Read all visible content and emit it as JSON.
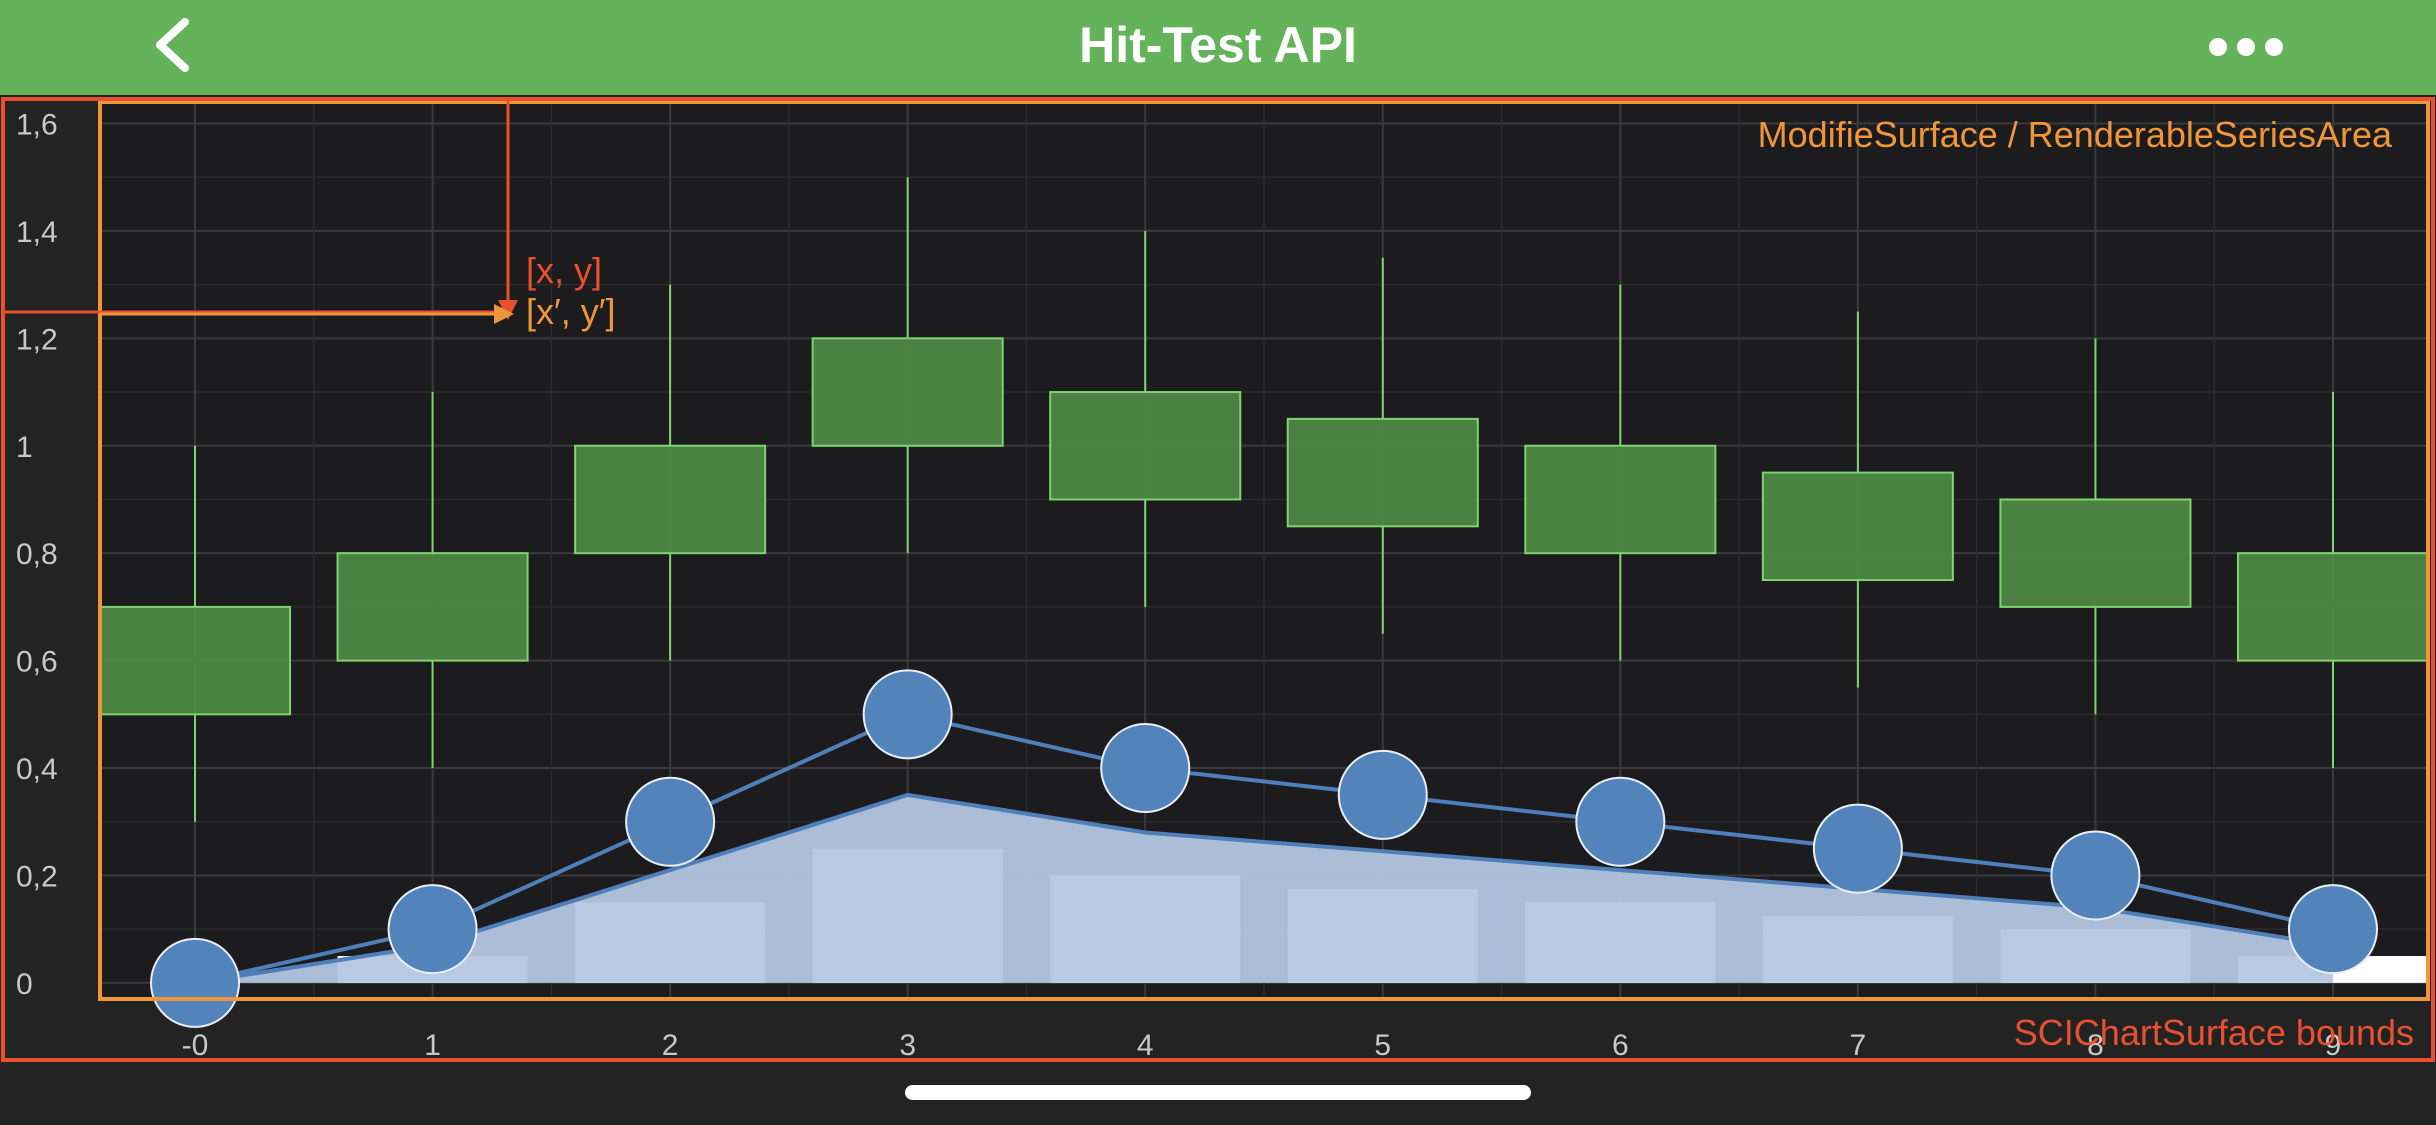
{
  "header": {
    "title": "Hit-Test API",
    "back_icon": "chevron-left-icon",
    "more_icon": "ellipsis-icon"
  },
  "annotations": {
    "modifier_surface_label": "ModifieSurface / RenderableSeriesArea",
    "chart_surface_label": "SCIChartSurface bounds",
    "point_xy_label": "[x, y]",
    "point_xy_prime_label": "[x′, y′]"
  },
  "colors": {
    "header_bg": "#64b25a",
    "chart_bg": "#1c1c1e",
    "candle_fill": "#4f8a47",
    "candle_stroke": "#7fd46f",
    "line_color": "#4f7fb8",
    "bubble_fill": "#5283bb",
    "mountain_fill": "#b3c6e2",
    "column_fill": "#ffffff",
    "modifier_border": "#f0963a",
    "surface_border": "#e8502e"
  },
  "chart_data": [
    {
      "type": "candlestick",
      "x": [
        0,
        1,
        2,
        3,
        4,
        5,
        6,
        7,
        8,
        9
      ],
      "open": [
        0.5,
        0.6,
        0.8,
        1.0,
        1.1,
        1.05,
        1.0,
        0.95,
        0.9,
        0.8
      ],
      "high": [
        1.0,
        1.1,
        1.3,
        1.5,
        1.4,
        1.35,
        1.3,
        1.25,
        1.2,
        1.1
      ],
      "low": [
        0.3,
        0.4,
        0.6,
        0.8,
        0.7,
        0.65,
        0.6,
        0.55,
        0.5,
        0.4
      ],
      "close": [
        0.7,
        0.8,
        1.0,
        1.2,
        0.9,
        0.85,
        0.8,
        0.75,
        0.7,
        0.6
      ]
    },
    {
      "type": "line",
      "x": [
        0,
        1,
        2,
        3,
        4,
        5,
        6,
        7,
        8,
        9
      ],
      "values": [
        0.0,
        0.1,
        0.3,
        0.5,
        0.4,
        0.35,
        0.3,
        0.25,
        0.2,
        0.1
      ]
    },
    {
      "type": "scatter",
      "x": [
        0,
        1,
        2,
        3,
        4,
        5,
        6,
        7,
        8,
        9
      ],
      "values": [
        0.0,
        0.1,
        0.3,
        0.5,
        0.4,
        0.35,
        0.3,
        0.25,
        0.2,
        0.1
      ]
    },
    {
      "type": "area",
      "x": [
        0,
        1,
        2,
        3,
        4,
        5,
        6,
        7,
        8,
        9
      ],
      "values": [
        0.0,
        0.07,
        0.21,
        0.35,
        0.28,
        0.245,
        0.21,
        0.175,
        0.14,
        0.07
      ]
    },
    {
      "type": "bar",
      "x": [
        0,
        1,
        2,
        3,
        4,
        5,
        6,
        7,
        8,
        9
      ],
      "values": [
        0.0,
        0.05,
        0.15,
        0.25,
        0.2,
        0.175,
        0.15,
        0.125,
        0.1,
        0.05
      ]
    }
  ],
  "axes": {
    "x_ticks": [
      "-0",
      "1",
      "2",
      "3",
      "4",
      "5",
      "6",
      "7",
      "8",
      "9"
    ],
    "x_range": [
      -0.4,
      9.4
    ],
    "y_ticks": [
      "0",
      "0,2",
      "0,4",
      "0,6",
      "0,8",
      "1",
      "1,2",
      "1,4",
      "1,6"
    ],
    "y_tick_values": [
      0,
      0.2,
      0.4,
      0.6,
      0.8,
      1.0,
      1.2,
      1.4,
      1.6
    ],
    "y_range": [
      -0.03,
      1.64
    ],
    "grid": true
  }
}
